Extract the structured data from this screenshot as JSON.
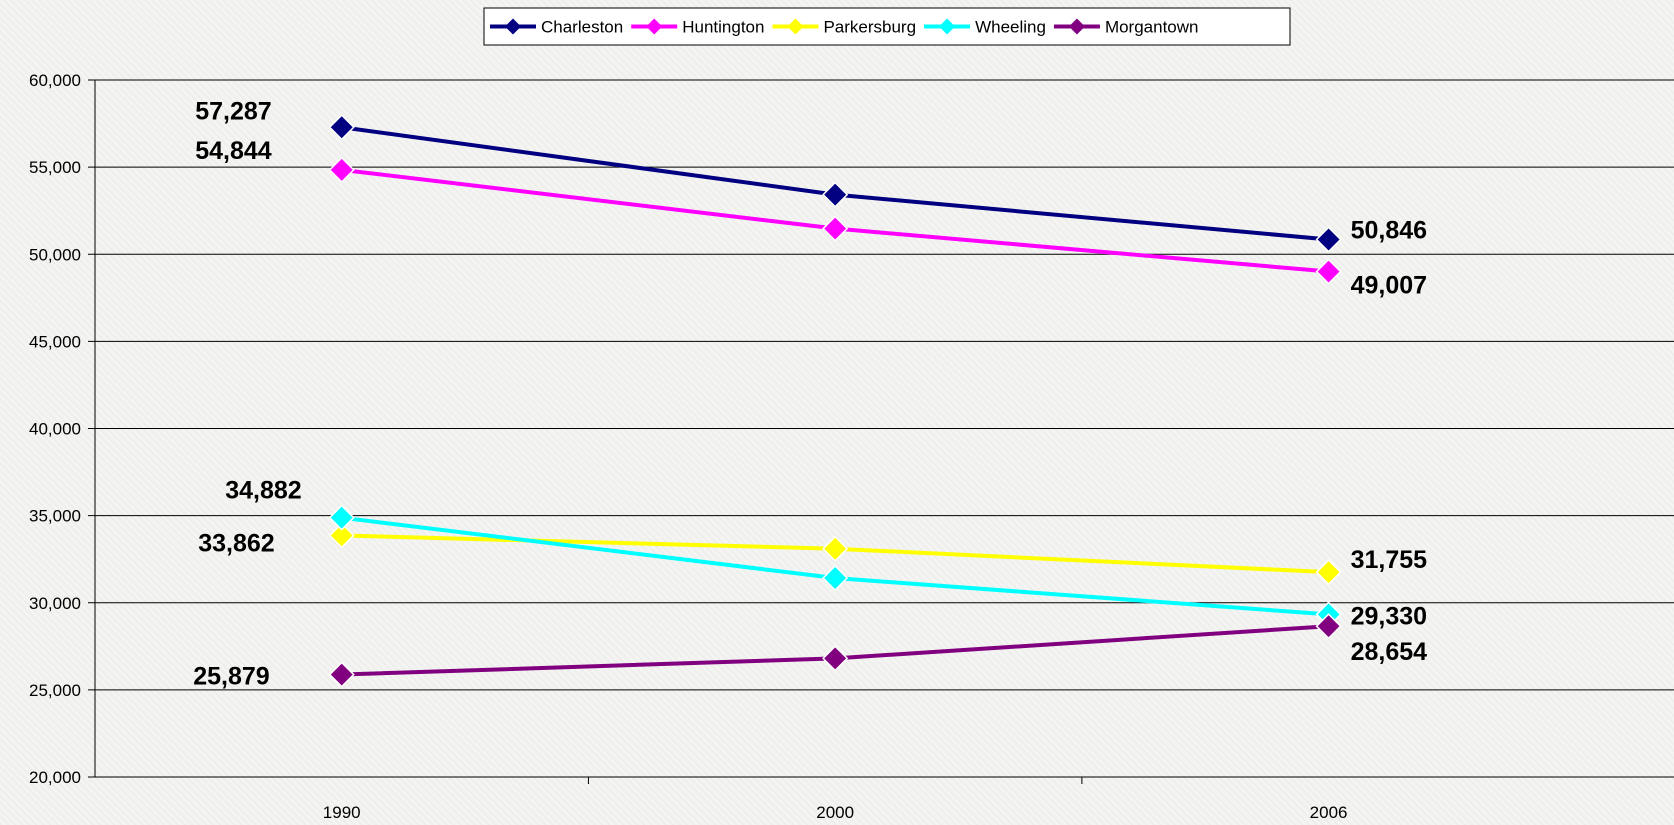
{
  "chart_data": {
    "type": "line",
    "categories": [
      "1990",
      "2000",
      "2006"
    ],
    "ylim": [
      20000,
      60000
    ],
    "yticks": [
      20000,
      25000,
      30000,
      35000,
      40000,
      45000,
      50000,
      55000,
      60000
    ],
    "ytick_labels": [
      "20,000",
      "25,000",
      "30,000",
      "35,000",
      "40,000",
      "45,000",
      "50,000",
      "55,000",
      "60,000"
    ],
    "grid": "horizontal",
    "legend_position": "top",
    "marker": "diamond",
    "series": [
      {
        "name": "Charleston",
        "color": "#000080",
        "values": [
          57287,
          53421,
          50846
        ],
        "labels": [
          "57,287",
          "",
          "50,846"
        ]
      },
      {
        "name": "Huntington",
        "color": "#ff00ff",
        "values": [
          54844,
          51475,
          49007
        ],
        "labels": [
          "54,844",
          "",
          "49,007"
        ]
      },
      {
        "name": "Parkersburg",
        "color": "#ffff00",
        "values": [
          33862,
          33099,
          31755
        ],
        "labels": [
          "33,862",
          "",
          "31,755"
        ]
      },
      {
        "name": "Wheeling",
        "color": "#00ffff",
        "values": [
          34882,
          31419,
          29330
        ],
        "labels": [
          "34,882",
          "",
          "29,330"
        ]
      },
      {
        "name": "Morgantown",
        "color": "#800080",
        "values": [
          25879,
          26809,
          28654
        ],
        "labels": [
          "25,879",
          "",
          "28,654"
        ]
      }
    ]
  }
}
